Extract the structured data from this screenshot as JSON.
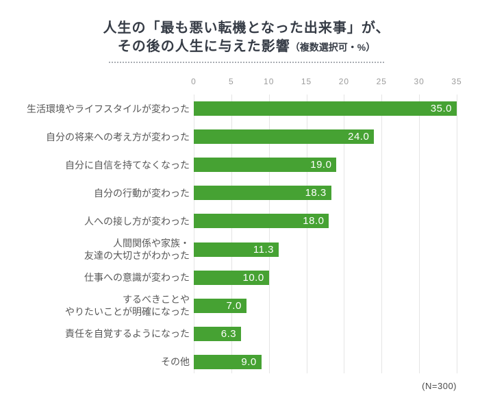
{
  "title": {
    "line1": "人生の「最も悪い転機となった出来事」が、",
    "line2_main": "その後の人生に与えた影響",
    "line2_paren": "（複数選択可・%）"
  },
  "note": "(N=300)",
  "chart_data": {
    "type": "bar",
    "orientation": "horizontal",
    "title": "人生の「最も悪い転機となった出来事」が、その後の人生に与えた影響（複数選択可・%）",
    "categories": [
      "生活環境やライフスタイルが変わった",
      "自分の将来への考え方が変わった",
      "自分に自信を持てなくなった",
      "自分の行動が変わった",
      "人への接し方が変わった",
      "人間関係や家族・\n友達の大切さがわかった",
      "仕事への意識が変わった",
      "するべきことや\nやりたいことが明確になった",
      "責任を自覚するようになった",
      "その他"
    ],
    "values": [
      35.0,
      24.0,
      19.0,
      18.3,
      18.0,
      11.3,
      10.0,
      7.0,
      6.3,
      9.0
    ],
    "value_labels": [
      "35.0",
      "24.0",
      "19.0",
      "18.3",
      "18.0",
      "11.3",
      "10.0",
      "7.0",
      "6.3",
      "9.0"
    ],
    "unit": "%",
    "sample_size": "(N=300)",
    "xlim": [
      0,
      35
    ],
    "xticks": [
      0,
      5,
      10,
      15,
      20,
      25,
      30,
      35
    ],
    "grid": true,
    "legend": false,
    "bar_color": "#46a233",
    "gridline_color": "#e4e4e4",
    "value_label_color": "#ffffff",
    "category_label_color": "#575757",
    "tick_label_color": "#9b9b9b",
    "title_color": "#363c46"
  }
}
